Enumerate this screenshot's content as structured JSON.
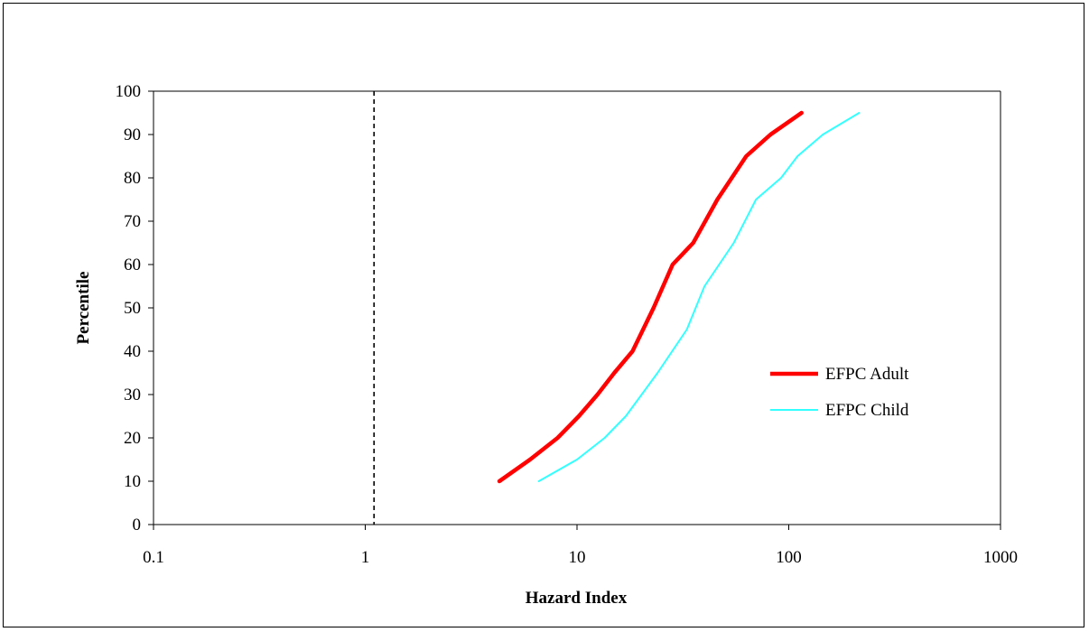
{
  "chart_data": {
    "type": "line",
    "title": "",
    "xlabel": "Hazard Index",
    "ylabel": "Percentile",
    "x_scale": "log",
    "xlim": [
      0.1,
      1000
    ],
    "ylim": [
      0,
      100
    ],
    "x_ticks": [
      "0.1",
      "1",
      "10",
      "100",
      "1000"
    ],
    "y_ticks": [
      "0",
      "10",
      "20",
      "30",
      "40",
      "50",
      "60",
      "70",
      "80",
      "90",
      "100"
    ],
    "grid": false,
    "legend_position": "right",
    "reference_line": {
      "x": 1.1,
      "style": "dashed",
      "color": "#000000"
    },
    "series": [
      {
        "name": "EFPC Adult",
        "color": "#ff0000",
        "x": [
          4.3,
          6.0,
          8.1,
          10.2,
          12.5,
          15.0,
          18.3,
          23.0,
          28.3,
          35.4,
          46.0,
          63.0,
          82.0,
          115.0
        ],
        "y": [
          10,
          15,
          20,
          25,
          30,
          35,
          40,
          50,
          60,
          65,
          75,
          85,
          90,
          95
        ]
      },
      {
        "name": "EFPC Child",
        "color": "#33ffff",
        "x": [
          6.6,
          10.0,
          13.5,
          17.0,
          24.0,
          33.0,
          40.0,
          55.0,
          70.0,
          92.0,
          110.0,
          145.0,
          215.0
        ],
        "y": [
          10,
          15,
          20,
          25,
          35,
          45,
          55,
          65,
          75,
          80,
          85,
          90,
          95
        ]
      }
    ]
  }
}
